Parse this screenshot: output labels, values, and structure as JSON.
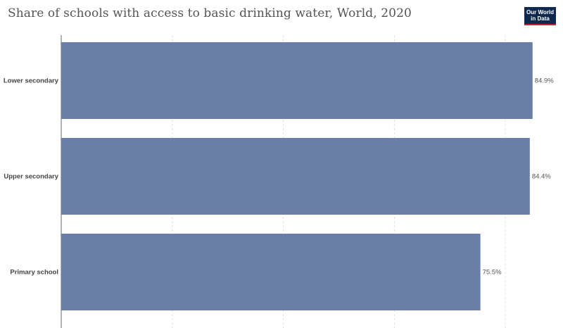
{
  "header": {
    "title": "Share of schools with access to basic drinking water, World, 2020"
  },
  "logo": {
    "line1": "Our World",
    "line2": "in Data"
  },
  "colors": {
    "bar": "#6a7fa5",
    "grid": "#dddddd",
    "axis": "#666666",
    "logo_bg": "#0d2a4e",
    "logo_accent": "#c0282e"
  },
  "chart_data": {
    "type": "bar",
    "orientation": "horizontal",
    "categories": [
      "Lower secondary",
      "Upper secondary",
      "Primary school"
    ],
    "values": [
      84.9,
      84.4,
      75.5
    ],
    "value_labels": [
      "84.9%",
      "84.4%",
      "75.5%"
    ],
    "title": "Share of schools with access to basic drinking water, World, 2020",
    "xlabel": "",
    "ylabel": "",
    "xlim": [
      0,
      90
    ],
    "grid": true
  }
}
